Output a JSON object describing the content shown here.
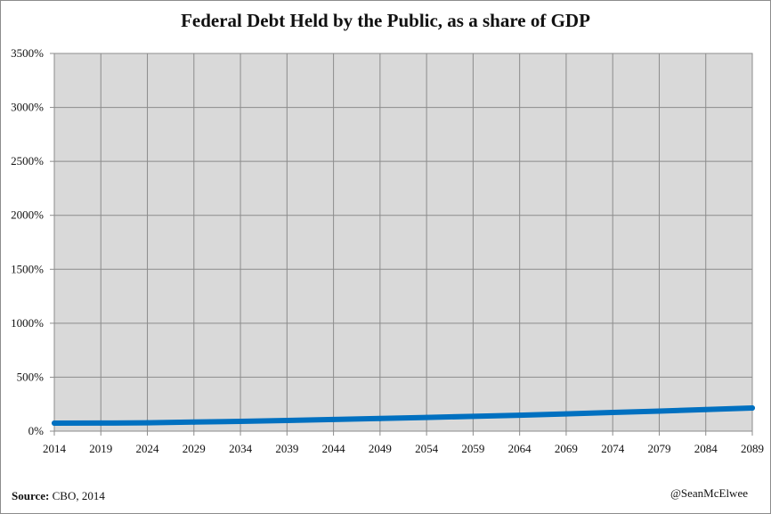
{
  "chart_data": {
    "type": "line",
    "title": "Federal Debt Held by the Public, as a share of GDP",
    "xlabel": "",
    "ylabel": "",
    "x_ticks": [
      "2014",
      "2019",
      "2024",
      "2029",
      "2034",
      "2039",
      "2044",
      "2049",
      "2054",
      "2059",
      "2064",
      "2069",
      "2074",
      "2079",
      "2084",
      "2089"
    ],
    "xlim": [
      2014,
      2089
    ],
    "y_ticks": [
      "0%",
      "500%",
      "1000%",
      "1500%",
      "2000%",
      "2500%",
      "3000%",
      "3500%"
    ],
    "ylim": [
      0,
      3500
    ],
    "grid": true,
    "legend": "none",
    "series": [
      {
        "color": "#0070c0",
        "x": [
          2014,
          2019,
          2024,
          2029,
          2034,
          2039,
          2044,
          2049,
          2054,
          2059,
          2064,
          2069,
          2074,
          2079,
          2084,
          2089
        ],
        "values": [
          74,
          75,
          78,
          84,
          91,
          99,
          108,
          117,
          127,
          137,
          148,
          160,
          173,
          186,
          200,
          215
        ]
      }
    ],
    "colors": {
      "plot_background": "#d9d9d9",
      "gridline": "#8c8c8c",
      "line": "#0070c0"
    }
  },
  "footer": {
    "source_label": "Source:",
    "source_text": "CBO, 2014",
    "credit": "@SeanMcElwee"
  }
}
